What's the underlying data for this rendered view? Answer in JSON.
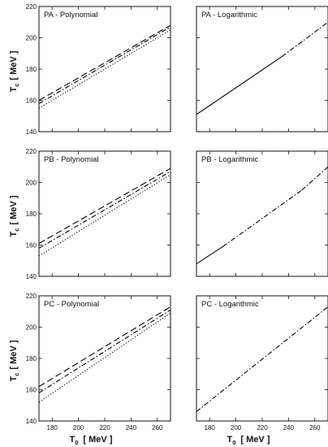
{
  "figure": {
    "ylabel": {
      "main": "T",
      "sub": "c",
      "unit": "[ MeV ]"
    },
    "xlabel": {
      "main": "T",
      "sub": "0",
      "unit": "[ MeV ]"
    }
  },
  "chart_data": [
    {
      "type": "line",
      "title": "PA - Polynomial",
      "xlim": [
        170,
        270
      ],
      "ylim": [
        140,
        220
      ],
      "xticks": [
        180,
        200,
        220,
        240,
        260
      ],
      "yticks": [
        140,
        160,
        180,
        200,
        220
      ],
      "series": [
        {
          "style": "dashed",
          "x": [
            170,
            270
          ],
          "y": [
            160,
            208
          ]
        },
        {
          "style": "dashdot",
          "x": [
            170,
            270
          ],
          "y": [
            158,
            207
          ]
        },
        {
          "style": "dotted",
          "x": [
            170,
            270
          ],
          "y": [
            155,
            205
          ]
        }
      ]
    },
    {
      "type": "line",
      "title": "PA - Logarithmic",
      "xlim": [
        170,
        270
      ],
      "ylim": [
        140,
        220
      ],
      "xticks": [
        180,
        200,
        220,
        240,
        260
      ],
      "yticks": [
        140,
        160,
        180,
        200,
        220
      ],
      "series": [
        {
          "style": "solid",
          "x": [
            170,
            235
          ],
          "y": [
            151,
            188
          ]
        },
        {
          "style": "dashdot",
          "x": [
            235,
            270
          ],
          "y": [
            188,
            210
          ]
        }
      ]
    },
    {
      "type": "line",
      "title": "PB - Polynomial",
      "xlim": [
        170,
        270
      ],
      "ylim": [
        140,
        220
      ],
      "xticks": [
        180,
        200,
        220,
        240,
        260
      ],
      "yticks": [
        140,
        160,
        180,
        200,
        220
      ],
      "series": [
        {
          "style": "dashed",
          "x": [
            170,
            270
          ],
          "y": [
            161,
            209
          ]
        },
        {
          "style": "dashdot",
          "x": [
            170,
            270
          ],
          "y": [
            158,
            207
          ]
        },
        {
          "style": "dotted",
          "x": [
            170,
            270
          ],
          "y": [
            153,
            205
          ]
        }
      ]
    },
    {
      "type": "line",
      "title": "PB - Logarithmic",
      "xlim": [
        170,
        270
      ],
      "ylim": [
        140,
        220
      ],
      "xticks": [
        180,
        200,
        220,
        240,
        260
      ],
      "yticks": [
        140,
        160,
        180,
        200,
        220
      ],
      "series": [
        {
          "style": "solid",
          "x": [
            170,
            190
          ],
          "y": [
            148,
            159
          ]
        },
        {
          "style": "dashdot",
          "x": [
            190,
            250
          ],
          "y": [
            159,
            195
          ]
        },
        {
          "style": "dashdot",
          "x": [
            250,
            270
          ],
          "y": [
            195,
            210
          ]
        }
      ]
    },
    {
      "type": "line",
      "title": "PC - Polynomial",
      "xlim": [
        170,
        270
      ],
      "ylim": [
        140,
        220
      ],
      "xticks": [
        180,
        200,
        220,
        240,
        260
      ],
      "yticks": [
        140,
        160,
        180,
        200,
        220
      ],
      "series": [
        {
          "style": "dashed",
          "x": [
            170,
            270
          ],
          "y": [
            162,
            213
          ]
        },
        {
          "style": "dashdot",
          "x": [
            170,
            270
          ],
          "y": [
            158,
            211
          ]
        },
        {
          "style": "dotted",
          "x": [
            170,
            270
          ],
          "y": [
            152,
            209
          ]
        }
      ]
    },
    {
      "type": "line",
      "title": "PC - Logarithmic",
      "xlim": [
        170,
        270
      ],
      "ylim": [
        140,
        220
      ],
      "xticks": [
        180,
        200,
        220,
        240,
        260
      ],
      "yticks": [
        140,
        160,
        180,
        200,
        220
      ],
      "series": [
        {
          "style": "dashdot",
          "x": [
            170,
            270
          ],
          "y": [
            146,
            213
          ]
        }
      ]
    }
  ]
}
